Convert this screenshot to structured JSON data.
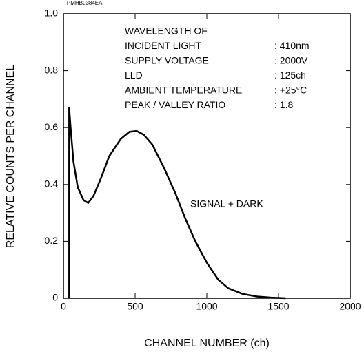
{
  "chart_data": {
    "type": "line",
    "figure_code": "TPMHB0384EA",
    "xlabel": "CHANNEL NUMBER (ch)",
    "ylabel": "RELATIVE COUNTS PER CHANNEL",
    "xlim": [
      0,
      2000
    ],
    "ylim": [
      0,
      1
    ],
    "xticks": [
      0,
      500,
      1000,
      1500,
      2000
    ],
    "yticks": [
      0,
      0.2,
      0.4,
      0.6,
      0.8,
      {
        "value": 1,
        "label": "1.0"
      }
    ],
    "annotation_rows": [
      [
        "WAVELENGTH OF"
      ],
      [
        "INCIDENT LIGHT",
        ": 410nm"
      ],
      [
        "SUPPLY VOLTAGE",
        ": 2000V"
      ],
      [
        "LLD",
        ": 125ch"
      ],
      [
        "AMBIENT TEMPERATURE",
        ": +25°C"
      ],
      [
        "PEAK / VALLEY RATIO",
        ": 1.8"
      ]
    ],
    "series": [
      {
        "name": "SIGNAL + DARK",
        "color": "#000000",
        "x": [
          40,
          40,
          50,
          70,
          100,
          140,
          173,
          210,
          260,
          320,
          400,
          460,
          510,
          560,
          620,
          700,
          780,
          850,
          920,
          1000,
          1080,
          1150,
          1250,
          1350,
          1450,
          1550
        ],
        "values": [
          0,
          0.67,
          0.6,
          0.48,
          0.39,
          0.345,
          0.335,
          0.36,
          0.42,
          0.5,
          0.56,
          0.585,
          0.588,
          0.575,
          0.54,
          0.46,
          0.37,
          0.28,
          0.2,
          0.125,
          0.065,
          0.035,
          0.015,
          0.006,
          0.002,
          0
        ]
      }
    ]
  }
}
